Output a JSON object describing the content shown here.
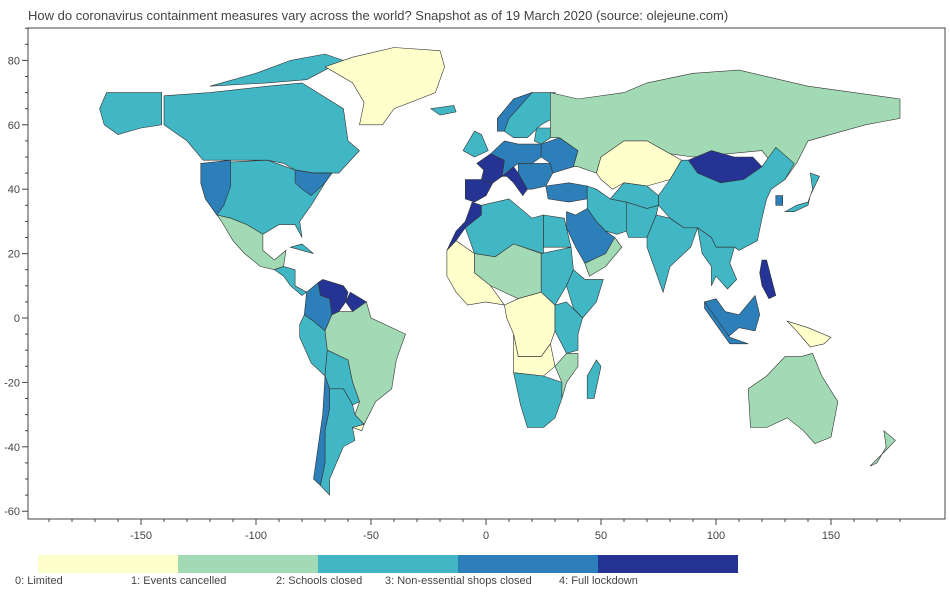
{
  "title": "How do coronavirus containment measures vary across the world? Snapshot as of 19 March 2020 (source: olejeune.com)",
  "chart_data": {
    "type": "choropleth",
    "x_ticks": [
      -150,
      -100,
      -50,
      0,
      50,
      100,
      150
    ],
    "y_ticks": [
      80,
      60,
      40,
      20,
      0,
      -20,
      -40,
      -60
    ],
    "xlim": [
      -200,
      200
    ],
    "ylim": [
      -65,
      90
    ],
    "grid": false,
    "legend_position": "bottom",
    "colors": [
      "#ffffcc",
      "#a1dab4",
      "#41b6c4",
      "#2c7fb8",
      "#253494"
    ],
    "legend": [
      {
        "level": 0,
        "label": "0: Limited"
      },
      {
        "level": 1,
        "label": "1: Events cancelled"
      },
      {
        "level": 2,
        "label": "2: Schools closed"
      },
      {
        "level": 3,
        "label": "3: Non-essential shops closed"
      },
      {
        "level": 4,
        "label": "4: Full lockdown"
      }
    ]
  }
}
